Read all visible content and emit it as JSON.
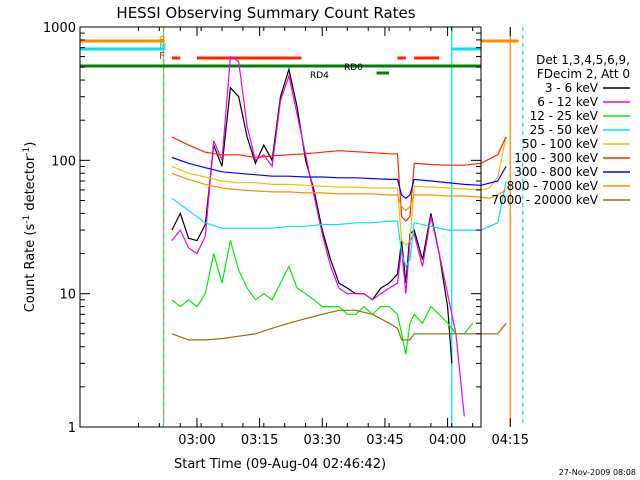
{
  "chart_data": {
    "type": "line",
    "title": "HESSI Observing Summary Count Rates",
    "xlabel": "Start Time (09-Aug-04 02:46:42)",
    "ylabel_main": "Count Rate (s",
    "ylabel_sup1": "-1",
    "ylabel_mid": " detector",
    "ylabel_sup2": "-1",
    "ylabel_end": ")",
    "yscale": "log",
    "xlim_minutes": [
      -14,
      82
    ],
    "ylim": [
      1,
      1000
    ],
    "x_ticks": [
      {
        "min": 14,
        "label": "03:00"
      },
      {
        "min": 29,
        "label": "03:15"
      },
      {
        "min": 44,
        "label": "03:30"
      },
      {
        "min": 59,
        "label": "03:45"
      },
      {
        "min": 74,
        "label": "04:00"
      },
      {
        "min": 89,
        "label": "04:15"
      }
    ],
    "y_ticks": [
      {
        "value": 1,
        "label": "1"
      },
      {
        "value": 10,
        "label": "10"
      },
      {
        "value": 100,
        "label": "100"
      },
      {
        "value": 1000,
        "label": "1000"
      }
    ],
    "legend_header": [
      "Det 1,3,4,5,6,9,",
      "FDecim 2, Att 0"
    ],
    "footer_timestamp": "27-Nov-2009 08:08",
    "flags": [
      {
        "label": "S",
        "color": "#ff8c00"
      },
      {
        "label": "N",
        "color": "#00e5ee"
      },
      {
        "label": "F",
        "color": "#ff2400"
      }
    ],
    "annotations": [
      "RD0",
      "RD4"
    ],
    "series": [
      {
        "name": "3 - 6 keV",
        "color": "#000000",
        "x": [
          8,
          10,
          12,
          14,
          16,
          18,
          20,
          22,
          24,
          26,
          28,
          30,
          32,
          34,
          36,
          38,
          40,
          42,
          44,
          46,
          48,
          50,
          52,
          54,
          56,
          58,
          60,
          62,
          63,
          64,
          65,
          66,
          68,
          70,
          72,
          74,
          75
        ],
        "y": [
          30,
          40,
          26,
          25,
          33,
          130,
          90,
          350,
          300,
          150,
          95,
          130,
          100,
          300,
          480,
          250,
          100,
          60,
          30,
          18,
          12,
          11,
          10,
          10,
          9,
          11,
          12,
          14,
          25,
          12,
          28,
          30,
          18,
          40,
          20,
          8,
          3
        ]
      },
      {
        "name": "6 - 12 keV",
        "color": "#ee00ee",
        "x": [
          8,
          10,
          12,
          14,
          16,
          18,
          20,
          22,
          24,
          26,
          28,
          30,
          32,
          34,
          36,
          38,
          40,
          42,
          44,
          46,
          48,
          50,
          52,
          54,
          56,
          58,
          60,
          62,
          63,
          64,
          65,
          66,
          68,
          70,
          72,
          74,
          76,
          78
        ],
        "y": [
          25,
          30,
          22,
          20,
          27,
          140,
          100,
          600,
          550,
          180,
          100,
          110,
          90,
          280,
          430,
          220,
          110,
          55,
          28,
          16,
          11,
          10,
          10,
          10,
          9,
          10,
          11,
          12,
          22,
          10,
          25,
          28,
          16,
          38,
          20,
          10,
          5,
          1.2
        ]
      },
      {
        "name": "12 - 25 keV",
        "color": "#00ee00",
        "x": [
          8,
          10,
          12,
          14,
          16,
          18,
          20,
          22,
          24,
          26,
          28,
          30,
          32,
          34,
          36,
          38,
          40,
          42,
          44,
          46,
          48,
          50,
          52,
          54,
          56,
          58,
          60,
          62,
          63,
          64,
          65,
          66,
          68,
          70,
          72,
          74,
          76,
          78,
          80
        ],
        "y": [
          9,
          8,
          9,
          8,
          10,
          20,
          12,
          25,
          15,
          11,
          9,
          10,
          9,
          12,
          16,
          11,
          10,
          9,
          8,
          8,
          8,
          7,
          7,
          8,
          7,
          8,
          8,
          7,
          5,
          3.5,
          6,
          7,
          6,
          8,
          7,
          6,
          5,
          5,
          6
        ]
      },
      {
        "name": "25 - 50 keV",
        "color": "#00e5ee",
        "x": [
          8,
          12,
          16,
          20,
          24,
          28,
          32,
          36,
          40,
          44,
          48,
          52,
          56,
          60,
          62,
          63,
          64,
          65,
          66,
          70,
          74,
          78,
          82,
          86,
          88
        ],
        "y": [
          52,
          42,
          34,
          31,
          31,
          31,
          31,
          32,
          32,
          33,
          33,
          34,
          34,
          35,
          35,
          20,
          16,
          18,
          34,
          32,
          30,
          30,
          30,
          34,
          70
        ]
      },
      {
        "name": "50 - 100 keV",
        "color": "#e8c400",
        "x": [
          8,
          12,
          16,
          20,
          24,
          28,
          32,
          36,
          40,
          44,
          48,
          52,
          56,
          60,
          62,
          63,
          64,
          65,
          66,
          70,
          74,
          78,
          82,
          84,
          86,
          88
        ],
        "y": [
          90,
          80,
          75,
          70,
          68,
          68,
          66,
          66,
          65,
          64,
          63,
          63,
          62,
          62,
          62,
          25,
          23,
          25,
          64,
          63,
          62,
          61,
          60,
          62,
          75,
          150
        ]
      },
      {
        "name": "100 - 300 keV",
        "color": "#ff2400",
        "x": [
          8,
          12,
          16,
          20,
          24,
          28,
          32,
          36,
          40,
          44,
          48,
          52,
          56,
          60,
          62,
          63,
          64,
          65,
          66,
          70,
          74,
          78,
          82,
          86,
          88
        ],
        "y": [
          150,
          130,
          115,
          110,
          110,
          105,
          108,
          110,
          112,
          115,
          118,
          116,
          114,
          112,
          112,
          38,
          35,
          38,
          95,
          93,
          92,
          92,
          95,
          110,
          150
        ]
      },
      {
        "name": "300 - 800 keV",
        "color": "#0000ff",
        "x": [
          8,
          12,
          16,
          20,
          24,
          28,
          32,
          36,
          40,
          44,
          48,
          52,
          56,
          60,
          62,
          63,
          64,
          65,
          66,
          70,
          74,
          78,
          82,
          86,
          88
        ],
        "y": [
          105,
          95,
          88,
          82,
          80,
          78,
          76,
          76,
          75,
          75,
          74,
          74,
          73,
          72,
          72,
          55,
          52,
          55,
          72,
          70,
          68,
          66,
          65,
          70,
          90
        ]
      },
      {
        "name": "800 - 7000 keV",
        "color": "#ff8c00",
        "x": [
          8,
          12,
          16,
          20,
          24,
          28,
          32,
          36,
          40,
          44,
          48,
          52,
          56,
          60,
          62,
          63,
          64,
          65,
          66,
          70,
          74,
          78,
          82,
          84,
          86,
          88
        ],
        "y": [
          80,
          72,
          66,
          62,
          60,
          59,
          58,
          58,
          57,
          57,
          56,
          56,
          56,
          55,
          55,
          45,
          42,
          45,
          55,
          55,
          54,
          54,
          53,
          52,
          55,
          60
        ]
      },
      {
        "name": "7000 - 20000 keV",
        "color": "#8b7500",
        "x": [
          8,
          12,
          16,
          20,
          24,
          28,
          32,
          36,
          40,
          44,
          48,
          52,
          56,
          60,
          62,
          63,
          64,
          65,
          66,
          70,
          74,
          78,
          82,
          86,
          88
        ],
        "y": [
          5,
          4.5,
          4.5,
          4.6,
          4.8,
          5,
          5.5,
          6,
          6.5,
          7,
          7.5,
          7.5,
          7,
          6,
          5.5,
          4.5,
          4.5,
          4.5,
          5,
          5,
          5,
          5,
          5,
          5,
          6
        ]
      }
    ]
  }
}
